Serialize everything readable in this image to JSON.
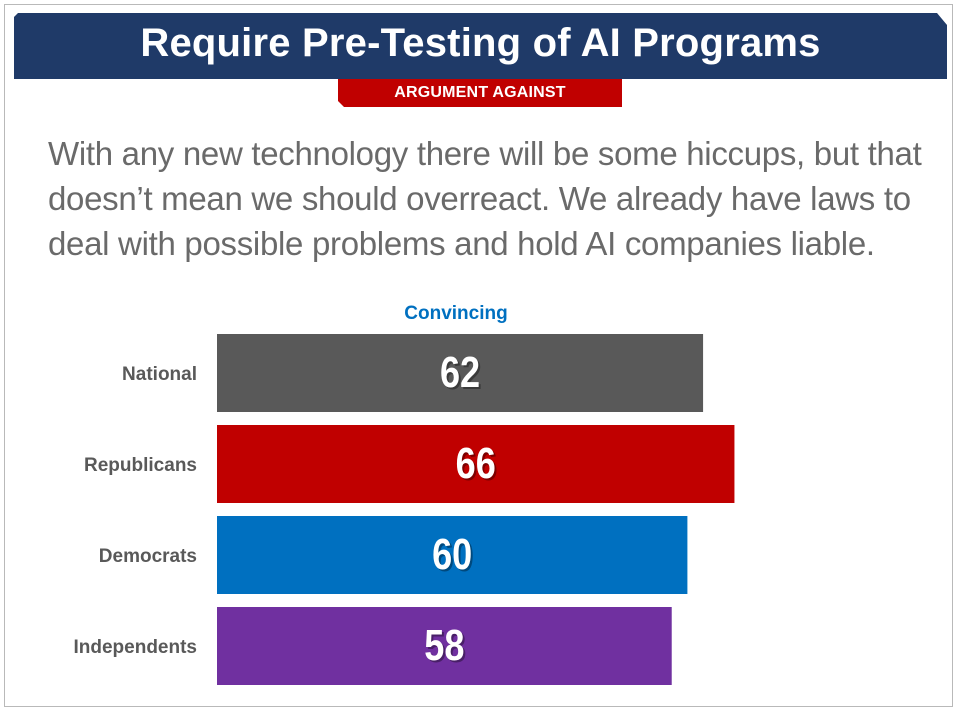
{
  "title": "Require Pre-Testing of AI Programs",
  "tag": "ARGUMENT AGAINST",
  "argument_lines": [
    "With any new technology there will be some hiccups, but that",
    "doesn’t mean we should overreact. We already have laws to",
    "deal with possible problems and hold AI companies liable."
  ],
  "colors": {
    "banner": "#1f3a68",
    "tag": "#c00000",
    "header_text": "#0070c0"
  },
  "chart_data": {
    "type": "bar",
    "orientation": "horizontal",
    "column_header": "Convincing",
    "categories": [
      "National",
      "Republicans",
      "Democrats",
      "Independents"
    ],
    "values": [
      62,
      66,
      60,
      58
    ],
    "colors": [
      "#595959",
      "#c00000",
      "#0070c0",
      "#7030a0"
    ],
    "xlim": [
      0,
      100
    ],
    "grid": false,
    "data_labels": true
  }
}
